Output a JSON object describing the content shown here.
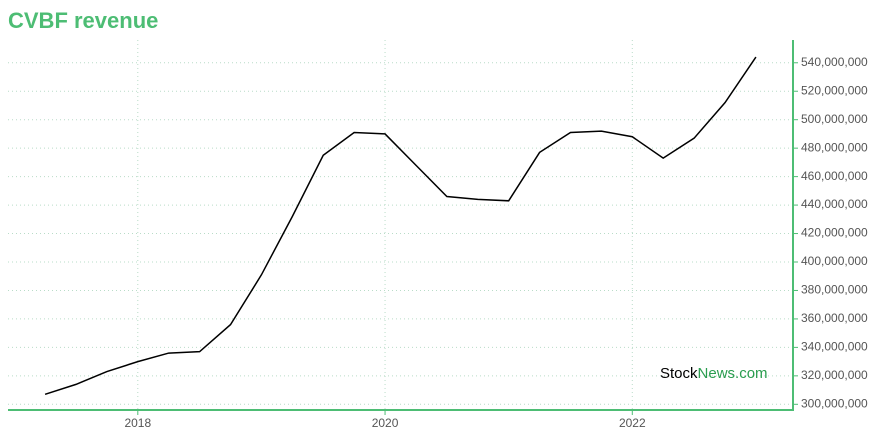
{
  "chart_data": {
    "type": "line",
    "title": "CVBF revenue",
    "x": [
      2017.25,
      2017.5,
      2017.75,
      2018.0,
      2018.25,
      2018.5,
      2018.75,
      2019.0,
      2019.25,
      2019.5,
      2019.75,
      2020.0,
      2020.25,
      2020.5,
      2020.75,
      2021.0,
      2021.25,
      2021.5,
      2021.75,
      2022.0,
      2022.25,
      2022.5,
      2022.75,
      2023.0
    ],
    "series": [
      {
        "name": "Revenue",
        "color": "#000000",
        "values": [
          307000000,
          314000000,
          323000000,
          330000000,
          336000000,
          337000000,
          356000000,
          391000000,
          432000000,
          475000000,
          491000000,
          490000000,
          468000000,
          446000000,
          444000000,
          443000000,
          477000000,
          491000000,
          492000000,
          488000000,
          473000000,
          487000000,
          512000000,
          544000000
        ]
      }
    ],
    "xlim": [
      2016.95,
      2023.3
    ],
    "xticks": [
      2018,
      2020,
      2022
    ],
    "ylim": [
      296000000,
      556000000
    ],
    "yticks": [
      {
        "value": 300000000,
        "label": "300,000,000"
      },
      {
        "value": 320000000,
        "label": "320,000,000"
      },
      {
        "value": 340000000,
        "label": "340,000,000"
      },
      {
        "value": 360000000,
        "label": "360,000,000"
      },
      {
        "value": 380000000,
        "label": "380,000,000"
      },
      {
        "value": 400000000,
        "label": "400,000,000"
      },
      {
        "value": 420000000,
        "label": "420,000,000"
      },
      {
        "value": 440000000,
        "label": "440,000,000"
      },
      {
        "value": 460000000,
        "label": "460,000,000"
      },
      {
        "value": 480000000,
        "label": "480,000,000"
      },
      {
        "value": 500000000,
        "label": "500,000,000"
      },
      {
        "value": 520000000,
        "label": "520,000,000"
      },
      {
        "value": 540000000,
        "label": "540,000,000"
      }
    ],
    "grid": true,
    "axis_color": "#4dbd74",
    "watermark": [
      "Stock",
      "News.com"
    ]
  }
}
